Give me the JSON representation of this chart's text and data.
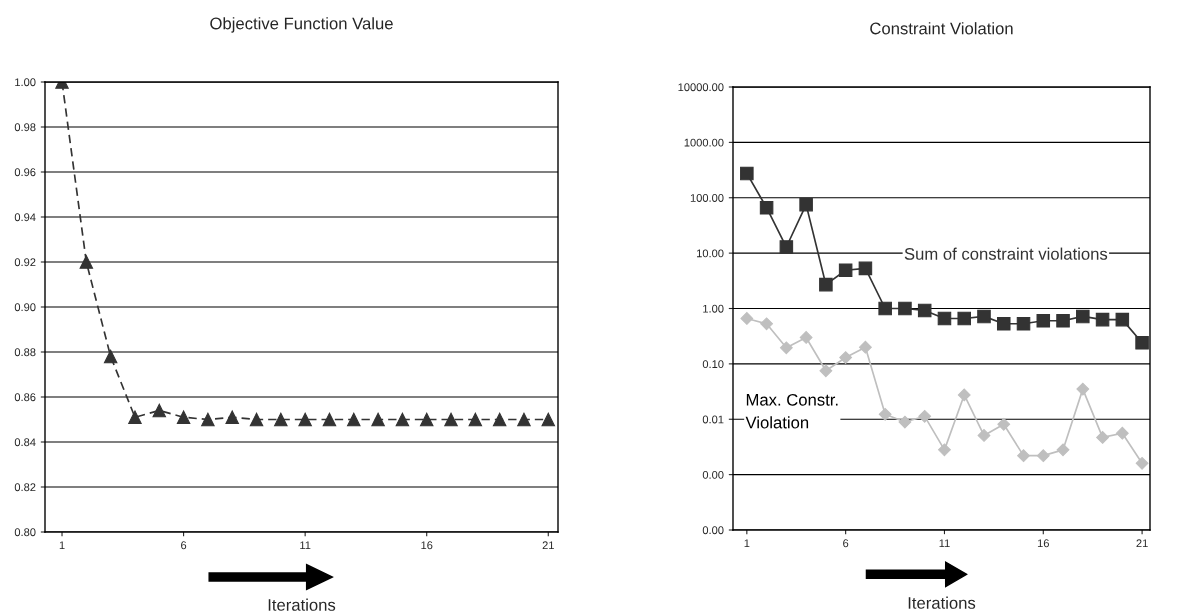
{
  "chart_data": [
    {
      "type": "line",
      "title": "Objective Function Value",
      "xlabel": "Iterations",
      "x": [
        1,
        2,
        3,
        4,
        5,
        6,
        7,
        8,
        9,
        10,
        11,
        12,
        13,
        14,
        15,
        16,
        17,
        18,
        19,
        20,
        21
      ],
      "xlim": [
        0.3,
        21.4
      ],
      "xticks": [
        1,
        6,
        11,
        16,
        21
      ],
      "ylim": [
        0.8,
        1.0
      ],
      "yticks": [
        {
          "value": 0.8,
          "label": "0.80"
        },
        {
          "value": 0.82,
          "label": "0.82"
        },
        {
          "value": 0.84,
          "label": "0.84"
        },
        {
          "value": 0.86,
          "label": "0.86"
        },
        {
          "value": 0.88,
          "label": "0.88"
        },
        {
          "value": 0.9,
          "label": "0.90"
        },
        {
          "value": 0.92,
          "label": "0.92"
        },
        {
          "value": 0.94,
          "label": "0.94"
        },
        {
          "value": 0.96,
          "label": "0.96"
        },
        {
          "value": 0.98,
          "label": "0.98"
        },
        {
          "value": 1.0,
          "label": "1.00"
        }
      ],
      "grid": "y",
      "legend": false,
      "series": [
        {
          "color": "#333333",
          "marker": "triangle",
          "line_style": "dashed",
          "values": [
            1.0,
            0.92,
            0.878,
            0.851,
            0.854,
            0.851,
            0.85,
            0.851,
            0.85,
            0.85,
            0.85,
            0.85,
            0.85,
            0.85,
            0.85,
            0.85,
            0.85,
            0.85,
            0.85,
            0.85,
            0.85
          ]
        }
      ]
    },
    {
      "type": "line",
      "title": "Constraint Violation",
      "xlabel": "Iterations",
      "log": true,
      "x": [
        1,
        2,
        3,
        4,
        5,
        6,
        7,
        8,
        9,
        10,
        11,
        12,
        13,
        14,
        15,
        16,
        17,
        18,
        19,
        20,
        21
      ],
      "xlim": [
        0.3,
        21.4
      ],
      "xticks": [
        1,
        6,
        11,
        16,
        21
      ],
      "ylim": [
        0.0001,
        10000
      ],
      "yticks": [
        {
          "value": 0.0001,
          "label": "0.00"
        },
        {
          "value": 0.001,
          "label": "0.00"
        },
        {
          "value": 0.01,
          "label": "0.01"
        },
        {
          "value": 0.1,
          "label": "0.10"
        },
        {
          "value": 1,
          "label": "1.00"
        },
        {
          "value": 10,
          "label": "10.00"
        },
        {
          "value": 100,
          "label": "100.00"
        },
        {
          "value": 1000,
          "label": "1000.00"
        },
        {
          "value": 10000,
          "label": "10000.00"
        }
      ],
      "grid": "y",
      "legend": false,
      "series": [
        {
          "name": "Sum of constraint violations",
          "color": "#333333",
          "marker": "square",
          "line_style": "solid",
          "values": [
            275,
            66,
            12.9,
            75,
            2.7,
            4.9,
            5.3,
            1.0,
            1.0,
            0.92,
            0.66,
            0.66,
            0.72,
            0.53,
            0.53,
            0.6,
            0.6,
            0.72,
            0.63,
            0.63,
            0.24
          ]
        },
        {
          "name": "Max. Constr.\nViolation",
          "color": "#bfbfbf",
          "marker": "diamond",
          "line_style": "solid",
          "values": [
            0.66,
            0.53,
            0.195,
            0.3,
            0.075,
            0.13,
            0.2,
            0.0123,
            0.0089,
            0.0113,
            0.0028,
            0.0275,
            0.0051,
            0.0081,
            0.0022,
            0.0022,
            0.0028,
            0.035,
            0.0047,
            0.0056,
            0.0016
          ]
        }
      ]
    }
  ]
}
